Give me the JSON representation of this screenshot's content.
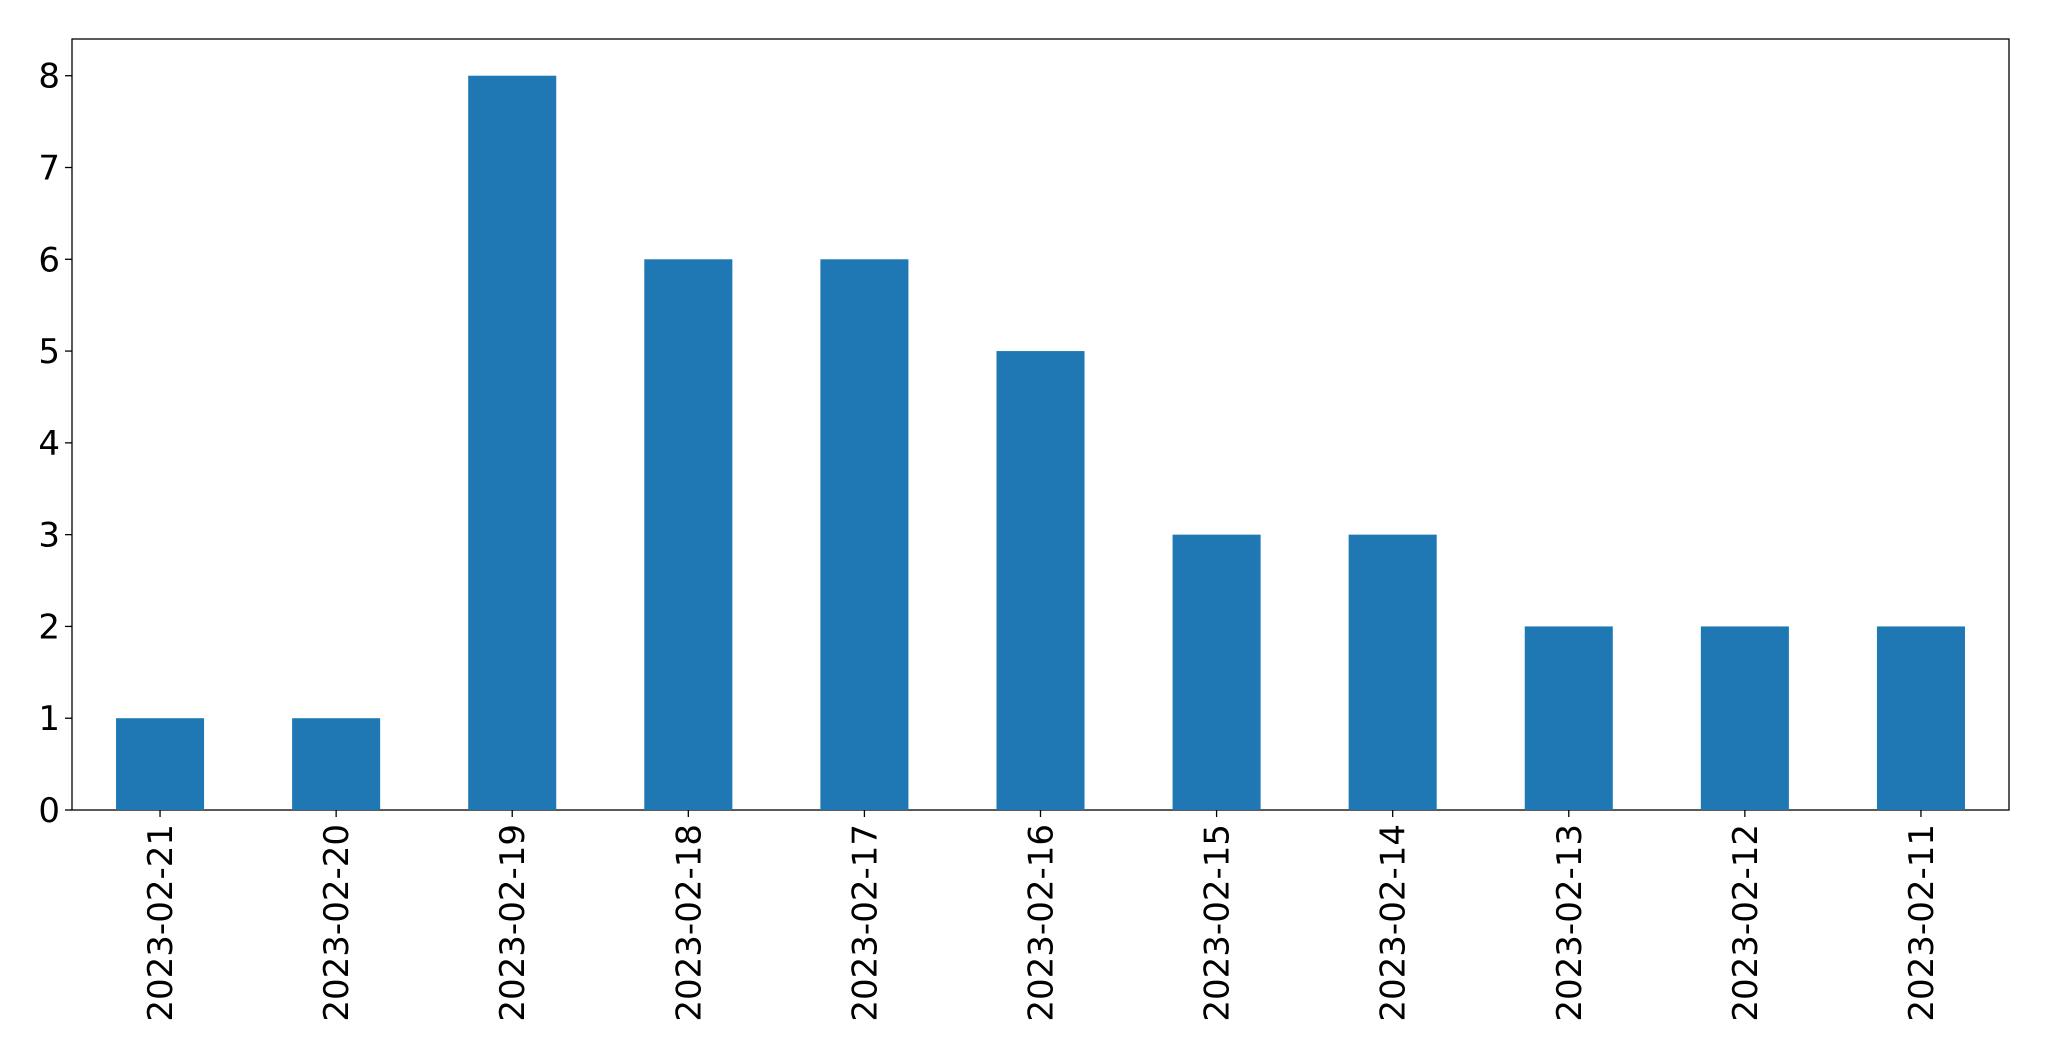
{
  "chart_data": {
    "type": "bar",
    "categories": [
      "2023-02-21",
      "2023-02-20",
      "2023-02-19",
      "2023-02-18",
      "2023-02-17",
      "2023-02-16",
      "2023-02-15",
      "2023-02-14",
      "2023-02-13",
      "2023-02-12",
      "2023-02-11"
    ],
    "values": [
      1,
      1,
      8,
      6,
      6,
      5,
      3,
      3,
      2,
      2,
      2
    ],
    "color": "#1f77b4",
    "ylim": [
      0,
      8.4
    ],
    "yticks": [
      0,
      1,
      2,
      3,
      4,
      5,
      6,
      7,
      8
    ],
    "grid": false
  }
}
